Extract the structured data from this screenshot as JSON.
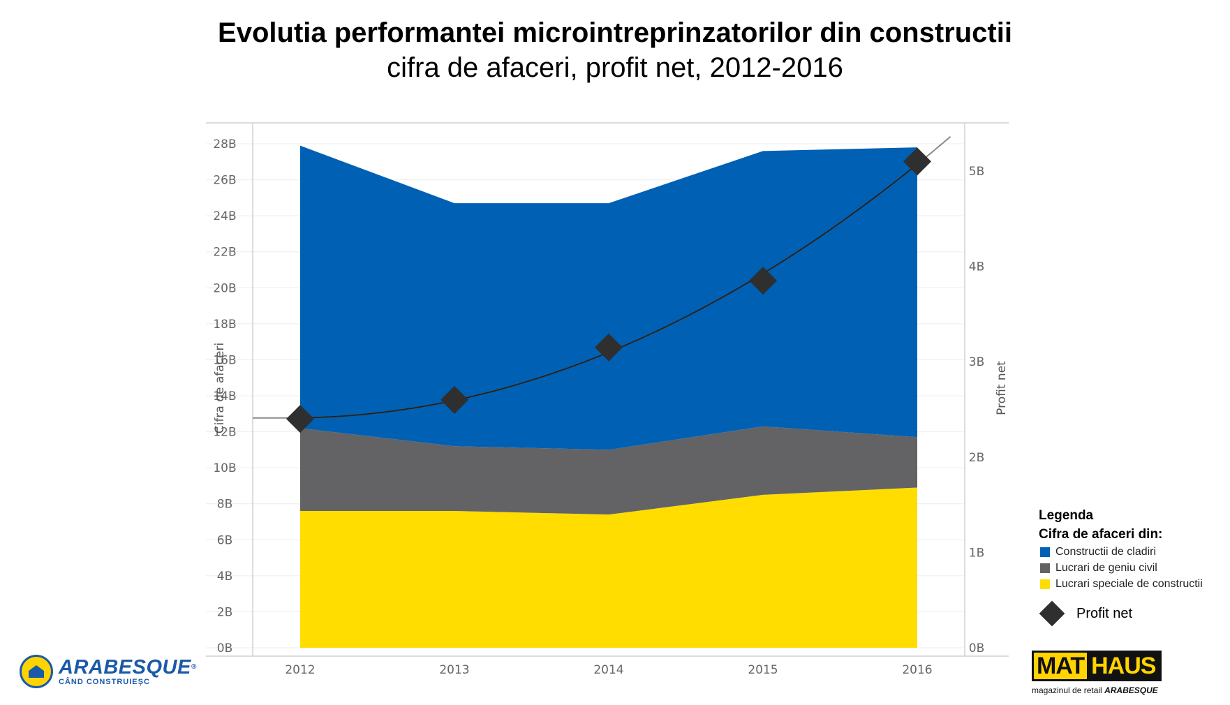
{
  "title": "Evolutia performantei microintreprinzatorilor din constructii",
  "subtitle": "cifra de afaceri, profit net, 2012-2016",
  "chart_data": {
    "type": "area",
    "categories": [
      "2012",
      "2013",
      "2014",
      "2015",
      "2016"
    ],
    "series": [
      {
        "name": "Lucrari speciale de constructii",
        "type": "area",
        "axis": "left",
        "color": "#ffdd00",
        "values": [
          7.6,
          7.6,
          7.4,
          8.5,
          8.9
        ]
      },
      {
        "name": "Lucrari de geniu civil",
        "type": "area",
        "axis": "left",
        "color": "#636366",
        "values": [
          4.6,
          3.6,
          3.6,
          3.8,
          2.8
        ]
      },
      {
        "name": "Constructii de cladiri",
        "type": "area",
        "axis": "left",
        "color": "#0060b4",
        "values": [
          15.7,
          13.5,
          13.7,
          15.3,
          16.1
        ]
      },
      {
        "name": "Profit  net",
        "type": "scatter",
        "marker": "diamond",
        "axis": "right",
        "color": "#2f2f2f",
        "values": [
          2.4,
          2.6,
          3.15,
          3.85,
          5.1
        ]
      }
    ],
    "trendline": {
      "type": "polynomial",
      "color": "#222222",
      "applies_to": "Profit  net"
    },
    "left_axis": {
      "label": "Cifra de afaceri",
      "ticks": [
        "0B",
        "2B",
        "4B",
        "6B",
        "8B",
        "10B",
        "12B",
        "14B",
        "16B",
        "18B",
        "20B",
        "22B",
        "24B",
        "26B",
        "28B"
      ],
      "ylim": [
        0,
        28
      ]
    },
    "right_axis": {
      "label": "Profit net",
      "ticks": [
        "0B",
        "1B",
        "2B",
        "3B",
        "4B",
        "5B"
      ],
      "ylim": [
        0,
        5
      ]
    },
    "stacked": true,
    "grid": true,
    "legend_position": "right"
  },
  "legend": {
    "title": "Legenda",
    "subtitle": "Cifra de afaceri din:",
    "items": [
      {
        "label": "Constructii de cladiri",
        "color": "#0060b4"
      },
      {
        "label": "Lucrari de geniu civil",
        "color": "#636366"
      },
      {
        "label": "Lucrari speciale de constructii",
        "color": "#ffdd00"
      }
    ],
    "marker_label": "Profit  net"
  },
  "logos": {
    "left_name": "ARABESQUE",
    "left_tagline": "CÂND CONSTRUIEȘC",
    "right_mat": "MAT",
    "right_haus": "HAUS",
    "right_tagline": "magazinul de retail",
    "right_tagline_brand": "ARABESQUE"
  }
}
